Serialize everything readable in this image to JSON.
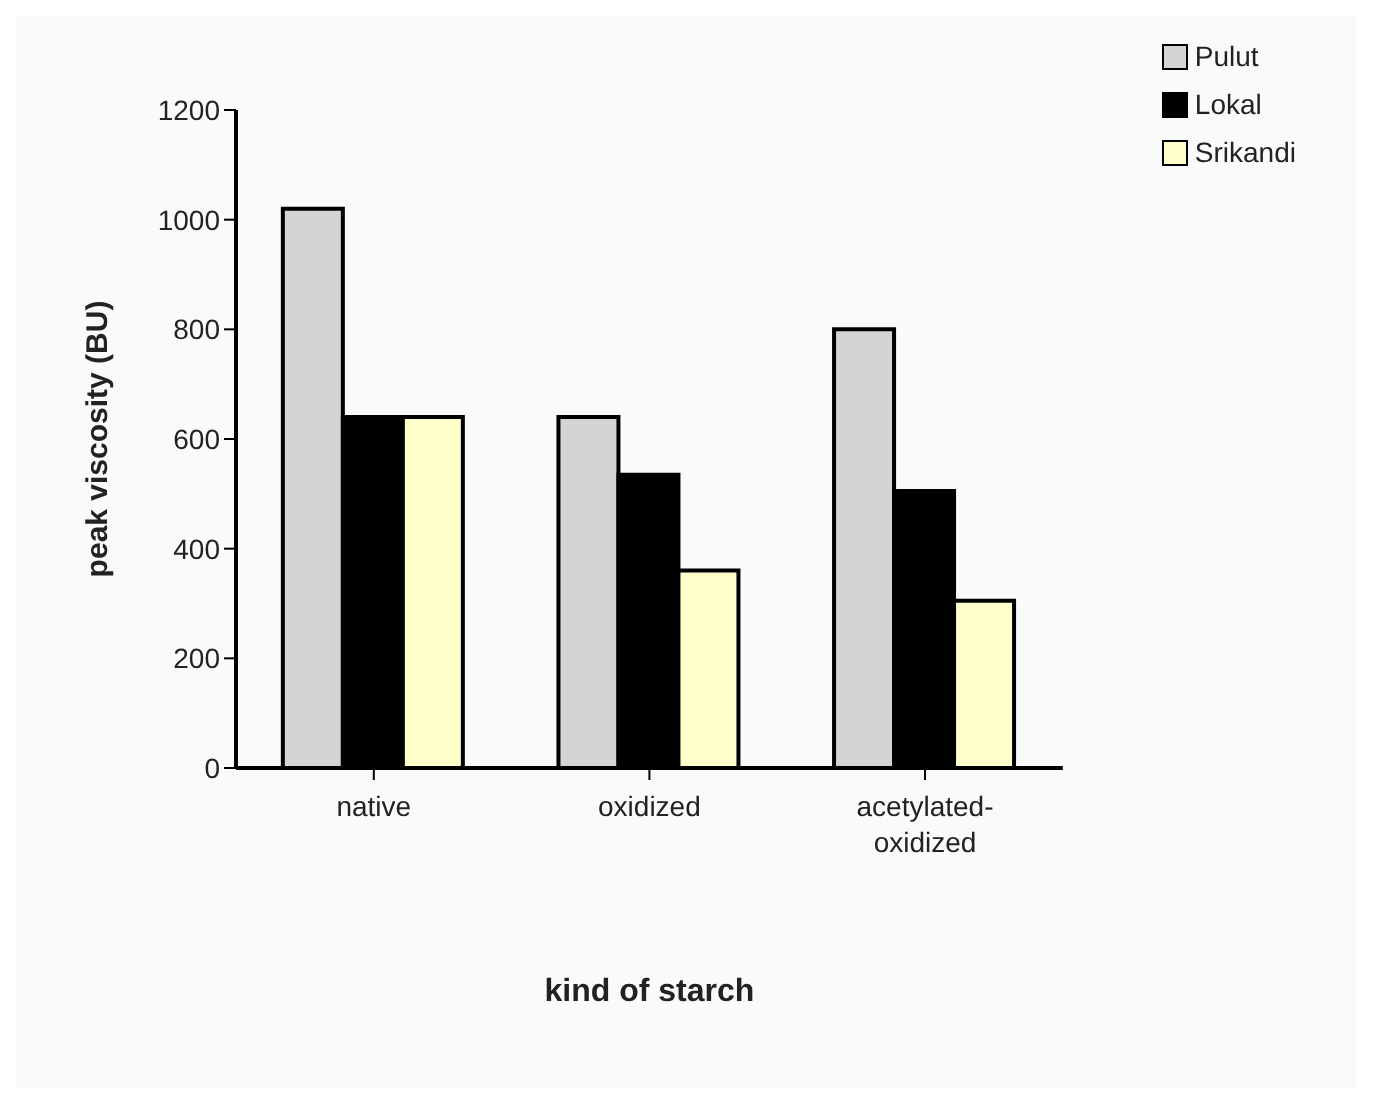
{
  "chart_data": {
    "type": "bar",
    "xlabel": "kind of starch",
    "ylabel": "peak viscosity (BU)",
    "categories": [
      "native",
      "oxidized",
      "acetylated-oxidized"
    ],
    "series": [
      {
        "name": "Pulut",
        "color": "#d4d4d4",
        "values": [
          1020,
          640,
          800
        ]
      },
      {
        "name": "Lokal",
        "color": "#000000",
        "values": [
          640,
          535,
          505
        ]
      },
      {
        "name": "Srikandi",
        "color": "#ffffcc",
        "values": [
          640,
          360,
          305
        ]
      }
    ],
    "ylim": [
      0,
      1200
    ],
    "yticks": [
      0,
      200,
      400,
      600,
      800,
      1000,
      1200
    ],
    "grid": false,
    "legend": "top right"
  }
}
